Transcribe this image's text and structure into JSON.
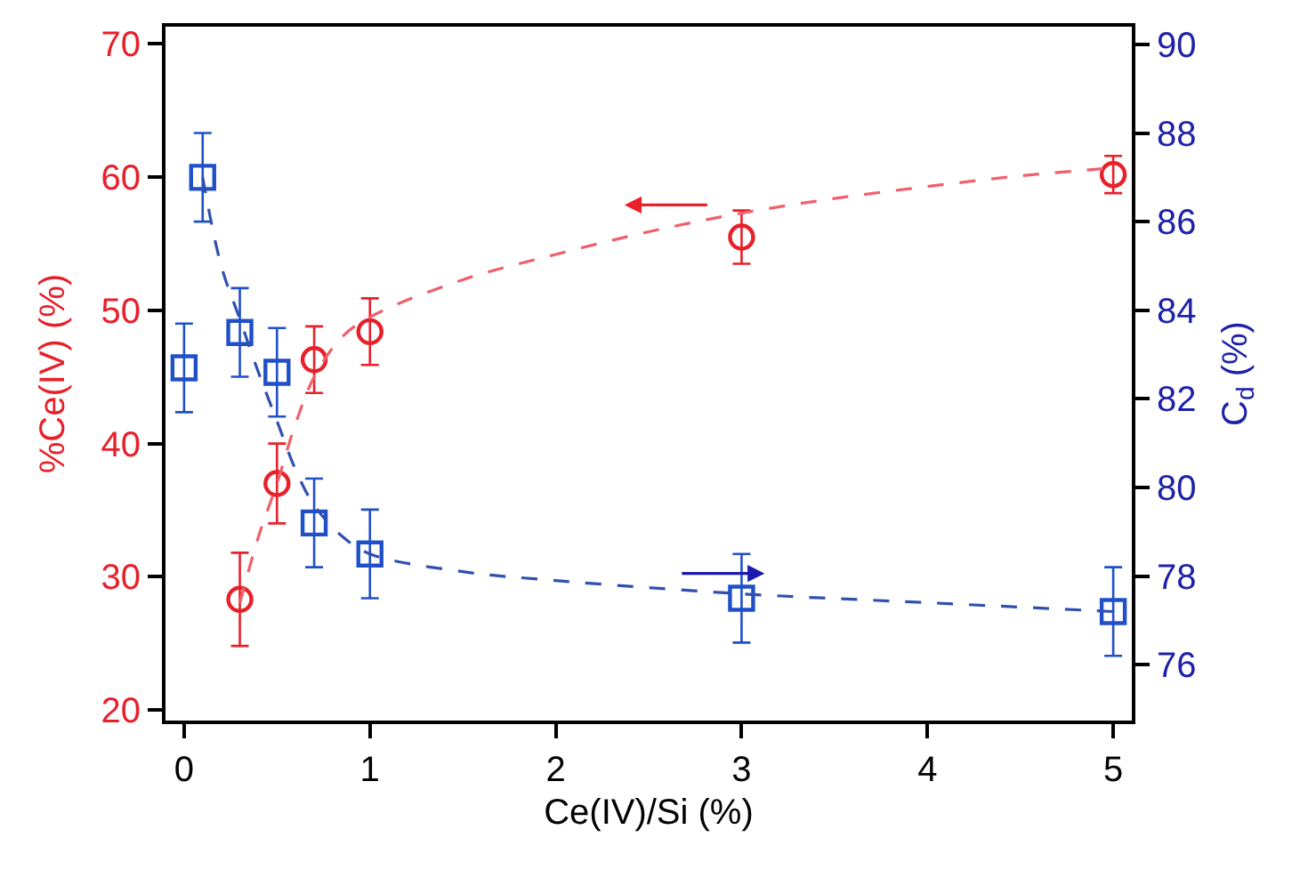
{
  "chart_data": {
    "type": "scatter",
    "xlabel": "Ce(IV)/Si (%)",
    "ylabel": "%Ce(IV) (%)",
    "y2label": "C$_{d}$ (%)",
    "xlim": [
      -0.1,
      5.1
    ],
    "xticks": [
      0,
      1,
      2,
      3,
      4,
      5
    ],
    "ylim": [
      19.2,
      71.3
    ],
    "yticks": [
      20,
      30,
      40,
      50,
      60,
      70
    ],
    "y2lim": [
      74.74,
      90.4
    ],
    "y2ticks": [
      76,
      78,
      80,
      82,
      84,
      86,
      88,
      90
    ],
    "series": [
      {
        "color": "#e8202a",
        "marker": "circle",
        "x": [
          0.3,
          0.5,
          0.7,
          1,
          3,
          5
        ],
        "values": [
          28.3,
          37.0,
          46.3,
          48.4,
          55.5,
          60.2
        ],
        "errors": [
          3.5,
          3,
          2.5,
          2.5,
          2,
          1.4
        ]
      },
      {
        "type": "line",
        "color": "#f0606a",
        "marker": "none",
        "line_style": "dashed",
        "x": [
          0.3,
          0.4,
          0.5,
          0.6,
          0.7,
          0.85,
          1,
          1.5,
          2,
          2.5,
          3,
          3.5,
          4,
          4.5,
          5
        ],
        "values": [
          28,
          33,
          37,
          41.5,
          45,
          48,
          49.5,
          52.3,
          54.2,
          55.9,
          57.3,
          58.4,
          59.3,
          60.1,
          60.7
        ]
      },
      {
        "axis": "y2",
        "color": "#2050c8",
        "marker": "square",
        "x": [
          0,
          0.1,
          0.3,
          0.5,
          0.7,
          1,
          3,
          5
        ],
        "values": [
          82.7,
          87.0,
          83.5,
          82.6,
          79.2,
          78.5,
          77.5,
          77.2
        ],
        "errors": [
          1,
          1,
          1,
          1,
          1,
          1,
          1,
          1
        ]
      },
      {
        "type": "line",
        "axis": "y2",
        "color": "#3050b0",
        "marker": "none",
        "line_style": "dashed",
        "x": [
          0.1,
          0.2,
          0.3,
          0.4,
          0.5,
          0.6,
          0.7,
          0.85,
          1,
          1.5,
          2,
          3,
          4,
          5
        ],
        "values": [
          87,
          85,
          83.8,
          82.6,
          81.5,
          80.4,
          79.6,
          78.9,
          78.5,
          78.1,
          77.9,
          77.6,
          77.4,
          77.2
        ]
      }
    ]
  }
}
